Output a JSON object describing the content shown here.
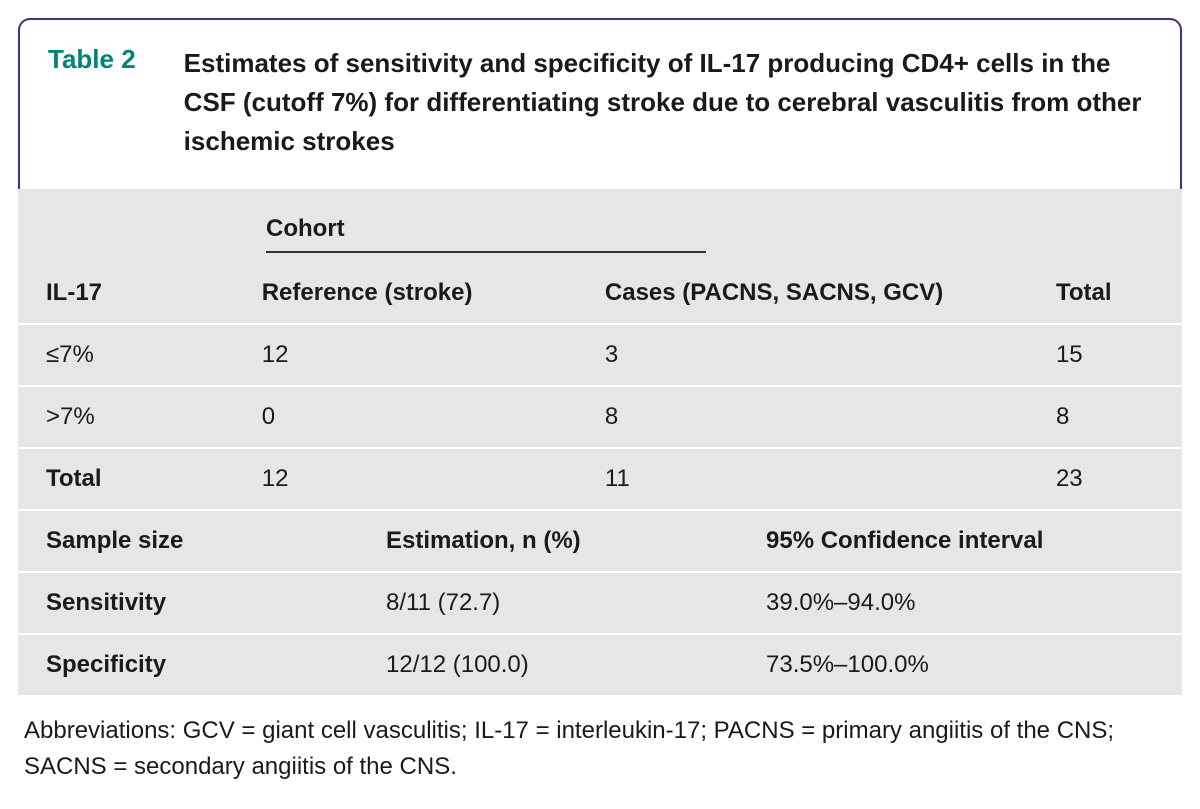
{
  "table": {
    "label": "Table 2",
    "title": "Estimates of sensitivity and specificity of IL-17 producing CD4+ cells in the CSF (cutoff 7%) for differentiating stroke due to cerebral vasculitis from other ischemic strokes",
    "colors": {
      "border": "#4b2e83",
      "label": "#00847a",
      "body_bg": "#e6e6e6",
      "row_divider": "#ffffff",
      "text": "#1a1a1a"
    },
    "top_section": {
      "supheader": "Cohort",
      "columns": [
        "IL-17",
        "Reference (stroke)",
        "Cases (PACNS, SACNS, GCV)",
        "Total"
      ],
      "rows": [
        {
          "label": "≤7%",
          "ref": "12",
          "cases": "3",
          "total": "15"
        },
        {
          "label": ">7%",
          "ref": "0",
          "cases": "8",
          "total": "8"
        },
        {
          "label": "Total",
          "ref": "12",
          "cases": "11",
          "total": "23",
          "bold_label": true
        }
      ]
    },
    "bottom_section": {
      "columns": [
        "Sample size",
        "Estimation, n (%)",
        "95% Confidence interval"
      ],
      "rows": [
        {
          "label": "Sensitivity",
          "est": "8/11 (72.7)",
          "ci": "39.0%–94.0%"
        },
        {
          "label": "Specificity",
          "est": "12/12 (100.0)",
          "ci": "73.5%–100.0%"
        }
      ]
    },
    "footnote": "Abbreviations: GCV = giant cell vasculitis; IL-17 = interleukin-17; PACNS = primary angiitis of the CNS; SACNS = secondary angiitis of the CNS."
  }
}
